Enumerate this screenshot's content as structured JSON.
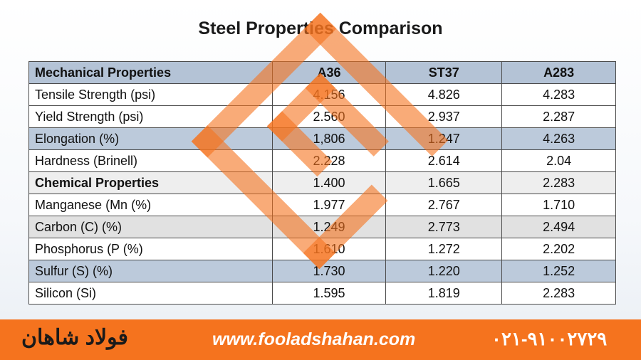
{
  "title": "Steel Properties Comparison",
  "table": {
    "headers": [
      "Mechanical Properties",
      "A36",
      "ST37",
      "A283"
    ],
    "rows": [
      {
        "label": "Tensile Strength (psi)",
        "values": [
          "4.156",
          "4.826",
          "4.283"
        ]
      },
      {
        "label": "Yield Strength (psi)",
        "values": [
          "2.560",
          "2.937",
          "2.287"
        ]
      },
      {
        "label": "Elongation (%)",
        "values": [
          "1,806",
          "1.247",
          "4.263"
        ]
      },
      {
        "label": "Hardness (Brinell)",
        "values": [
          "2.228",
          "2.614",
          "2.04"
        ]
      },
      {
        "label": "Chemical Properties",
        "values": [
          "1.400",
          "1.665",
          "2.283"
        ]
      },
      {
        "label": "Manganese (Mn (%)",
        "values": [
          "1.977",
          "2.767",
          "1.710"
        ]
      },
      {
        "label": "Carbon (C) (%)",
        "values": [
          "1.249",
          "2.773",
          "2.494"
        ]
      },
      {
        "label": "Phosphorus (P (%)",
        "values": [
          "1.610",
          "1.272",
          "2.202"
        ]
      },
      {
        "label": "Sulfur (S) (%)",
        "values": [
          "1.730",
          "1.220",
          "1.252"
        ]
      },
      {
        "label": "Silicon (Si)",
        "values": [
          "1.595",
          "1.819",
          "2.283"
        ]
      }
    ]
  },
  "footer": {
    "brand": "فولاد شاهان",
    "website": "www.fooladshahan.com",
    "phone": "۰۲۱-۹۱۰۰۲۷۲۹"
  },
  "colors": {
    "accent": "#f5731e",
    "header_row": "#b4c3d6"
  },
  "icons": {
    "watermark": "fooladshahan-logo-watermark"
  }
}
